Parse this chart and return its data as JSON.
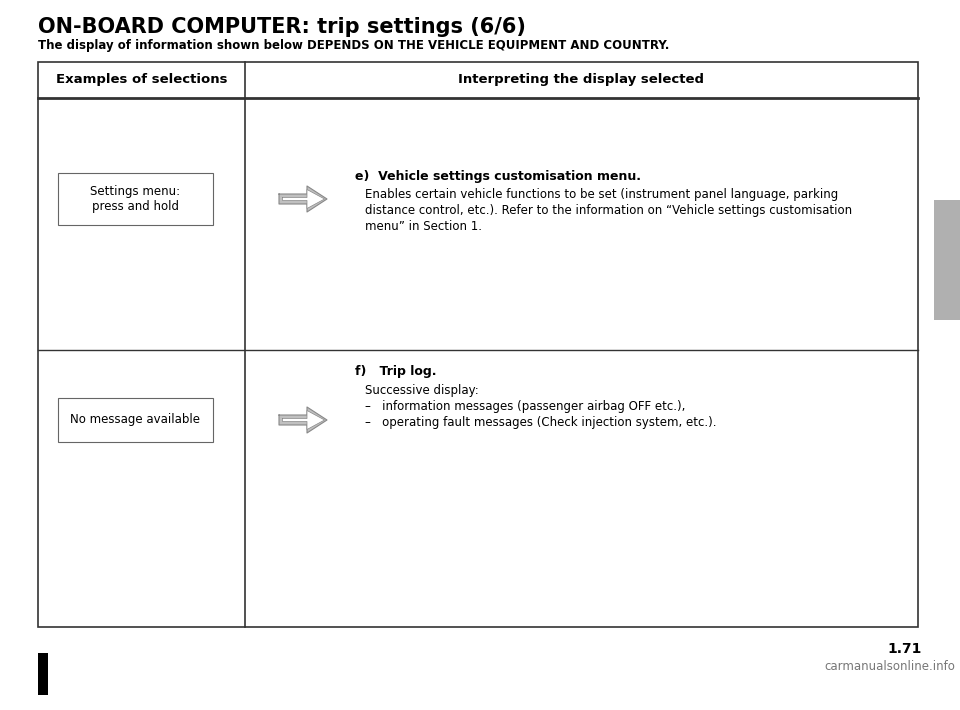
{
  "title": "ON-BOARD COMPUTER: trip settings (6/6)",
  "subtitle": "The display of information shown below DEPENDS ON THE VEHICLE EQUIPMENT AND COUNTRY.",
  "col1_header": "Examples of selections",
  "col2_header": "Interpreting the display selected",
  "bg_color": "#ffffff",
  "title_color": "#000000",
  "table_border_color": "#000000",
  "row1_box_text": "Settings menu:\npress and hold",
  "row2_box_text": "No message available",
  "section_e_title": "e)  Vehicle settings customisation menu.",
  "section_e_body1": "Enables certain vehicle functions to be set (instrument panel language, parking",
  "section_e_body2": "distance control, etc.). Refer to the information on “Vehicle settings customisation",
  "section_e_body3": "menu” in Section 1.",
  "section_f_title": "f)   Trip log.",
  "section_f_body1": "Successive display:",
  "section_f_bullet1": "–   information messages (passenger airbag OFF etc.),",
  "section_f_bullet2": "–   operating fault messages (Check injection system, etc.).",
  "page_number": "1.71",
  "watermark": "carmanualsonline.info",
  "sidebar_color": "#b0b0b0"
}
